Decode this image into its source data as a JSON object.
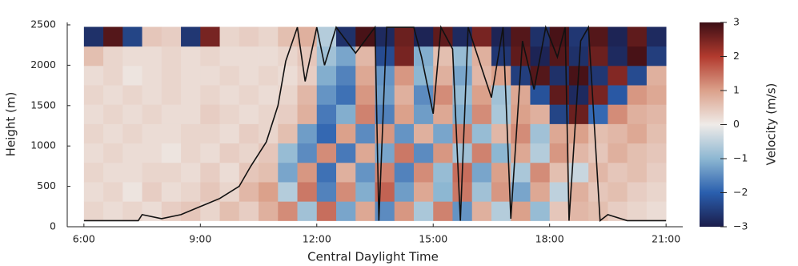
{
  "chart_data": {
    "type": "heatmap",
    "x_label": "Central Daylight Time",
    "y_label": "Height (m)",
    "colorbar_label": "Velocity (m/s)",
    "xlim": [
      5.57,
      21.43
    ],
    "ylim": [
      0,
      2500
    ],
    "xticks": [
      {
        "value": 6,
        "label": "6:00"
      },
      {
        "value": 9,
        "label": "9:00"
      },
      {
        "value": 12,
        "label": "12:00"
      },
      {
        "value": 15,
        "label": "15:00"
      },
      {
        "value": 18,
        "label": "18:00"
      },
      {
        "value": 21,
        "label": "21:00"
      }
    ],
    "yticks": [
      0,
      500,
      1000,
      1500,
      2000,
      2500
    ],
    "clim": [
      -3,
      3
    ],
    "cticks": [
      {
        "value": -3,
        "label": "−3"
      },
      {
        "value": -2,
        "label": "−2"
      },
      {
        "value": -1,
        "label": "−1"
      },
      0,
      1,
      2,
      3
    ],
    "colormap": [
      "#1b1d4b",
      "#2a5fae",
      "#8db7d2",
      "#efebe8",
      "#dba18b",
      "#b23a2e",
      "#3c0e15"
    ],
    "x_bins": [
      6,
      6.5,
      7,
      7.5,
      8,
      8.5,
      9,
      9.5,
      10,
      10.5,
      11,
      11.5,
      12,
      12.5,
      13,
      13.5,
      14,
      14.5,
      15,
      15.5,
      16,
      16.5,
      17,
      17.5,
      18,
      18.5,
      19,
      19.5,
      20,
      20.5,
      21
    ],
    "y_bins": [
      75,
      315,
      555,
      795,
      1035,
      1275,
      1515,
      1755,
      1995,
      2235,
      2475
    ],
    "z": [
      [
        0.3,
        0.2,
        0.3,
        0.2,
        0.4,
        0.5,
        0.3,
        0.6,
        0.4,
        0.8,
        1.2,
        -0.8,
        1.5,
        -1.2,
        0.9,
        -1.5,
        1.1,
        -0.7,
        1.3,
        -1.4,
        0.8,
        -0.6,
        1.0,
        -0.9,
        0.5,
        0.7,
        0.6,
        0.4,
        0.3,
        0.2
      ],
      [
        0.2,
        0.3,
        0.1,
        0.4,
        0.2,
        0.3,
        0.5,
        0.3,
        0.7,
        1.0,
        -0.6,
        1.4,
        -1.6,
        1.2,
        -1.1,
        1.6,
        -1.3,
        0.9,
        -1.0,
        1.4,
        -0.8,
        1.1,
        -1.2,
        0.9,
        -0.5,
        0.8,
        0.5,
        0.6,
        0.4,
        0.3
      ],
      [
        0.3,
        0.2,
        0.2,
        0.3,
        0.3,
        0.2,
        0.4,
        0.2,
        0.5,
        0.6,
        -1.2,
        1.1,
        -1.8,
        0.8,
        -1.4,
        1.3,
        -1.6,
        1.2,
        -0.9,
        1.5,
        -1.2,
        1.0,
        -0.7,
        1.2,
        0.6,
        -0.4,
        0.7,
        0.5,
        0.6,
        0.4
      ],
      [
        0.2,
        0.3,
        0.2,
        0.2,
        0.1,
        0.3,
        0.2,
        0.4,
        0.3,
        0.5,
        -0.9,
        -1.5,
        1.2,
        -1.7,
        0.9,
        -1.2,
        1.4,
        -1.5,
        1.1,
        -0.8,
        1.3,
        -1.0,
        0.9,
        -0.6,
        1.1,
        0.7,
        0.5,
        0.8,
        0.6,
        0.5
      ],
      [
        0.3,
        0.2,
        0.3,
        0.2,
        0.2,
        0.3,
        0.3,
        0.2,
        0.4,
        0.3,
        0.6,
        -1.3,
        -1.9,
        1.0,
        -1.5,
        1.1,
        -1.4,
        0.8,
        -1.2,
        1.3,
        -0.9,
        0.7,
        1.2,
        -0.8,
        0.9,
        1.0,
        0.6,
        0.7,
        0.9,
        0.6
      ],
      [
        0.2,
        0.3,
        0.2,
        0.3,
        0.2,
        0.2,
        0.4,
        0.3,
        0.2,
        0.3,
        0.4,
        0.8,
        -1.7,
        -1.1,
        1.3,
        -1.6,
        1.0,
        -1.3,
        0.9,
        -1.1,
        1.2,
        -0.7,
        1.0,
        0.8,
        -2.4,
        2.6,
        -1.9,
        1.2,
        0.8,
        0.7
      ],
      [
        0.3,
        0.2,
        0.3,
        0.2,
        0.3,
        0.2,
        0.3,
        0.2,
        0.3,
        0.2,
        0.3,
        0.7,
        -1.4,
        -1.8,
        1.1,
        -1.3,
        0.8,
        -1.5,
        1.2,
        -0.9,
        1.0,
        -0.8,
        0.9,
        -2.2,
        2.7,
        -2.8,
        2.5,
        -2.1,
        1.1,
        0.9
      ],
      [
        0.2,
        0.3,
        0.1,
        0.2,
        0.3,
        0.2,
        0.2,
        0.3,
        0.2,
        0.3,
        0.2,
        0.4,
        -1.1,
        -1.6,
        0.9,
        -1.4,
        1.1,
        -1.0,
        0.8,
        -1.2,
        0.7,
        1.0,
        -2.5,
        2.8,
        -2.7,
        2.9,
        -2.6,
        2.4,
        -2.3,
        0.8
      ],
      [
        0.6,
        0.3,
        0.2,
        0.2,
        0.3,
        0.2,
        0.3,
        0.2,
        0.2,
        0.2,
        0.3,
        0.5,
        -0.8,
        -1.2,
        0.7,
        -2.3,
        2.5,
        -1.1,
        0.6,
        -0.9,
        0.8,
        -2.6,
        2.7,
        -2.9,
        2.8,
        -2.7,
        2.6,
        -2.8,
        2.9,
        -2.5
      ],
      [
        -2.7,
        2.8,
        -2.4,
        0.5,
        0.4,
        -2.6,
        2.5,
        0.3,
        0.4,
        0.3,
        0.6,
        0.8,
        -0.6,
        -2.7,
        2.9,
        -2.8,
        2.6,
        -2.9,
        2.7,
        -2.8,
        2.5,
        -2.9,
        2.8,
        -2.7,
        2.9,
        -2.6,
        2.8,
        -2.9,
        2.7,
        -2.8
      ]
    ],
    "line": {
      "color": "#111111",
      "x": [
        6,
        7.4,
        7.5,
        8.0,
        8.5,
        9.0,
        9.5,
        10.0,
        10.3,
        10.5,
        10.7,
        11.0,
        11.2,
        11.5,
        11.7,
        12.0,
        12.2,
        12.5,
        13.0,
        13.5,
        13.6,
        13.8,
        14.5,
        14.7,
        15.0,
        15.2,
        15.5,
        15.7,
        15.9,
        16.5,
        16.8,
        17.0,
        17.3,
        17.6,
        17.9,
        18.2,
        18.4,
        18.5,
        18.8,
        19.0,
        19.3,
        19.5,
        20.0,
        21.0
      ],
      "values": [
        75,
        75,
        150,
        100,
        150,
        250,
        350,
        500,
        750,
        900,
        1050,
        1500,
        2050,
        2470,
        1800,
        2470,
        2000,
        2470,
        2150,
        2470,
        75,
        2470,
        2470,
        2100,
        1400,
        2470,
        2200,
        75,
        2470,
        1600,
        2470,
        100,
        2300,
        1700,
        2470,
        2100,
        2470,
        75,
        2300,
        2470,
        75,
        150,
        75,
        75
      ]
    }
  }
}
